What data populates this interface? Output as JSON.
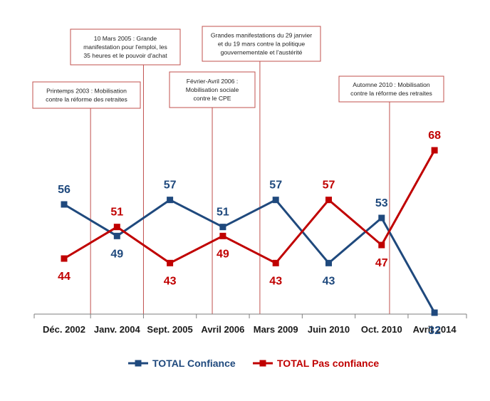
{
  "chart_data": {
    "type": "line",
    "categories": [
      "Déc. 2002",
      "Janv. 2004",
      "Sept. 2005",
      "Avril 2006",
      "Mars 2009",
      "Juin 2010",
      "Oct. 2010",
      "Avril 2014"
    ],
    "series": [
      {
        "name": "TOTAL Confiance",
        "color": "#1f497d",
        "values": [
          56,
          49,
          57,
          51,
          57,
          43,
          53,
          32
        ]
      },
      {
        "name": "TOTAL Pas confiance",
        "color": "#c00000",
        "values": [
          44,
          51,
          43,
          49,
          43,
          57,
          47,
          68
        ]
      }
    ],
    "annotations": [
      {
        "category_index": 0.5,
        "lines": [
          "Printemps 2003 : Mobilisation",
          "contre la réforme des retraites"
        ]
      },
      {
        "category_index": 1.5,
        "lines": [
          "10 Mars 2005 : Grande",
          "manifestation pour l'emploi, les",
          "35 heures et le pouvoir d'achat"
        ]
      },
      {
        "category_index": 2.8,
        "lines": [
          "Février-Avril 2006 :",
          "Mobilisation sociale",
          "contre le CPE"
        ]
      },
      {
        "category_index": 3.7,
        "lines": [
          "Grandes manifestations du 29 janvier",
          "et du 19 mars contre la politique",
          "gouvernementale et l'austérité"
        ]
      },
      {
        "category_index": 6.15,
        "lines": [
          "Automne 2010 : Mobilisation",
          "contre la réforme des retraites"
        ]
      }
    ],
    "annotation_color": "#c0504d",
    "axis_color": "#7f7f7f",
    "ylim": [
      20,
      80
    ],
    "grid": false,
    "legend_position": "bottom-center",
    "title": "",
    "xlabel": "",
    "ylabel": ""
  }
}
